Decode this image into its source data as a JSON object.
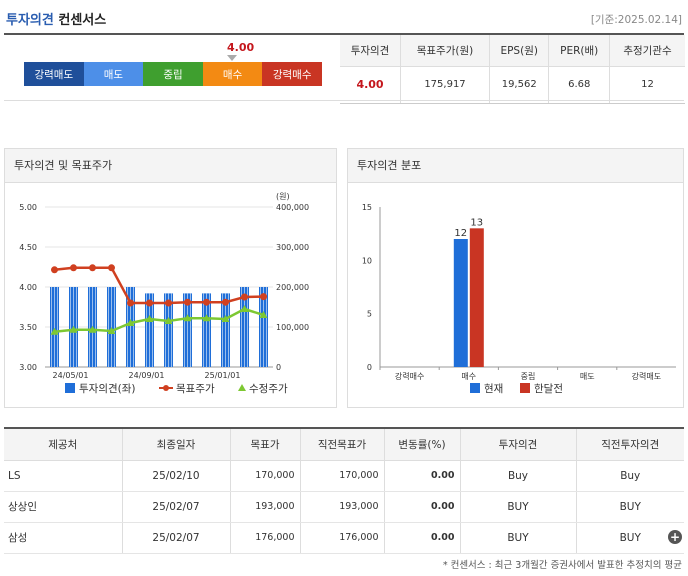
{
  "header": {
    "title_main": "투자의견",
    "title_sub": "컨센서스",
    "base_date": "[기준:2025.02.14]"
  },
  "score_bar": {
    "current_value": "4.00",
    "segments": [
      {
        "label": "강력매도",
        "color": "#1f4f9a"
      },
      {
        "label": "매도",
        "color": "#4d8fe8"
      },
      {
        "label": "중립",
        "color": "#3f9f2f"
      },
      {
        "label": "매수",
        "color": "#f38a13"
      },
      {
        "label": "강력매수",
        "color": "#c93523"
      }
    ]
  },
  "summary": {
    "headers": [
      "투자의견",
      "목표주가(원)",
      "EPS(원)",
      "PER(배)",
      "추정기관수"
    ],
    "values": [
      "4.00",
      "175,917",
      "19,562",
      "6.68",
      "12"
    ]
  },
  "chart1": {
    "title": "투자의견 및 목표주가",
    "chart_data": {
      "type": "bar",
      "x_ticks": [
        "24/05/01",
        "24/09/01",
        "25/01/01"
      ],
      "unit_right": "(원)",
      "y_left": {
        "range": [
          3.0,
          5.0
        ],
        "ticks": [
          "5.00",
          "4.50",
          "4.00",
          "3.50",
          "3.00"
        ]
      },
      "y_right": {
        "range": [
          0,
          400000
        ],
        "ticks": [
          "400,000",
          "300,000",
          "200,000",
          "100,000",
          "0"
        ]
      },
      "series": [
        {
          "name": "투자의견(좌)",
          "type": "bar",
          "axis": "left",
          "color": "#1f6ed8",
          "values": [
            4.0,
            4.0,
            4.0,
            4.0,
            4.0,
            3.92,
            3.92,
            3.92,
            3.92,
            3.92,
            4.0,
            4.0
          ]
        },
        {
          "name": "목표주가",
          "type": "line",
          "axis": "right",
          "color": "#d04020",
          "values": [
            243000,
            248000,
            248000,
            248000,
            160000,
            160000,
            160000,
            162000,
            162000,
            162000,
            175000,
            176000
          ]
        },
        {
          "name": "수정주가",
          "type": "line",
          "axis": "right",
          "color": "#7dc832",
          "values": [
            88000,
            93000,
            93000,
            90000,
            110000,
            120000,
            115000,
            122000,
            122000,
            120000,
            145000,
            130000
          ]
        }
      ]
    }
  },
  "chart2": {
    "title": "투자의견 분포",
    "chart_data": {
      "type": "bar",
      "categories": [
        "강력매수",
        "매수",
        "중립",
        "매도",
        "강력매도"
      ],
      "ylim": [
        0,
        15
      ],
      "y_ticks": [
        "15",
        "10",
        "5",
        "0"
      ],
      "series": [
        {
          "name": "현재",
          "color": "#1f6ed8",
          "values": [
            0,
            12,
            0,
            0,
            0
          ]
        },
        {
          "name": "한달전",
          "color": "#c93523",
          "values": [
            0,
            13,
            0,
            0,
            0
          ]
        }
      ],
      "labels": [
        "12",
        "13"
      ]
    }
  },
  "breakdown": {
    "headers": [
      "제공처",
      "최종일자",
      "목표가",
      "직전목표가",
      "변동률(%)",
      "투자의견",
      "직전투자의견"
    ],
    "rows": [
      [
        "LS",
        "25/02/10",
        "170,000",
        "170,000",
        "0.00",
        "Buy",
        "Buy"
      ],
      [
        "상상인",
        "25/02/07",
        "193,000",
        "193,000",
        "0.00",
        "BUY",
        "BUY"
      ],
      [
        "삼성",
        "25/02/07",
        "176,000",
        "176,000",
        "0.00",
        "BUY",
        "BUY"
      ]
    ]
  },
  "footnote": "* 컨센서스 : 최근 3개월간 증권사에서 발표한 추정치의 평균"
}
